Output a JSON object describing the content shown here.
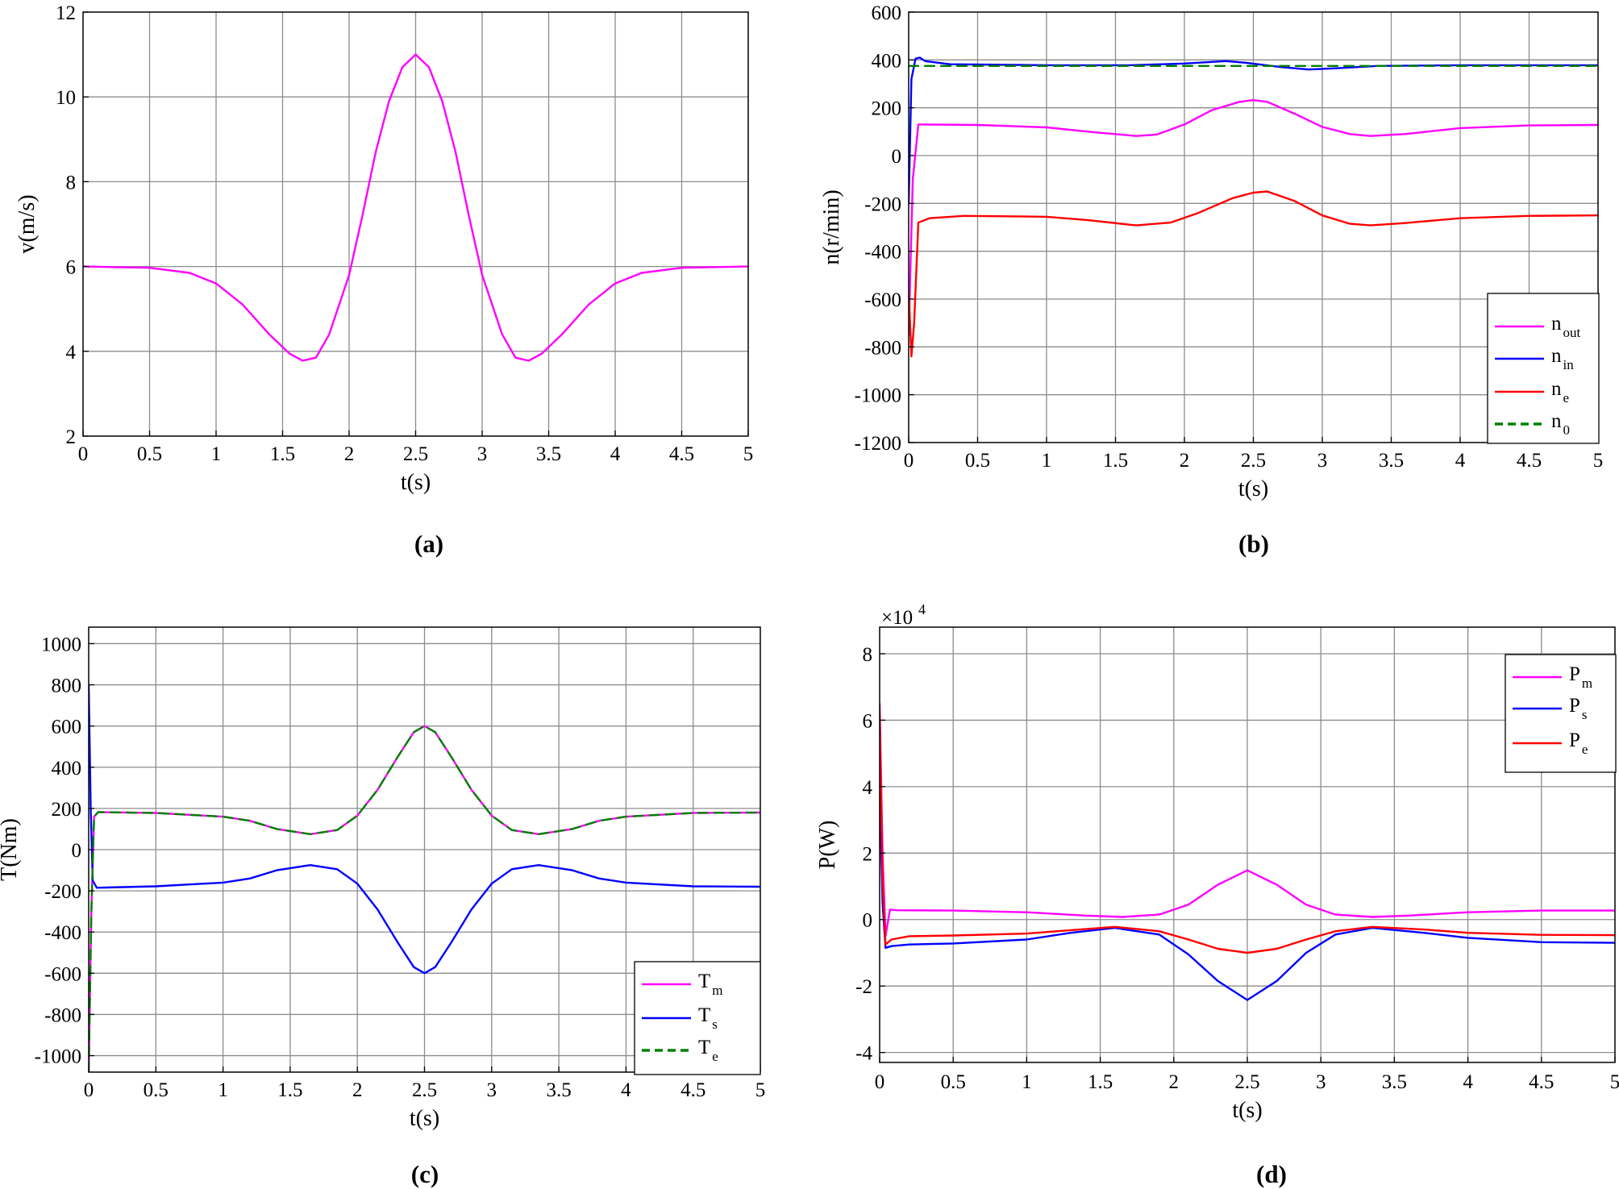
{
  "figure": {
    "caption_a": "(a)",
    "caption_b": "(b)",
    "caption_c": "(c)",
    "caption_d": "(d)"
  },
  "colors": {
    "magenta": "#ff00ff",
    "blue": "#0000ff",
    "red": "#ff0000",
    "green": "#008000",
    "grid": "#8c8c8c"
  },
  "chart_data": [
    {
      "id": "a",
      "type": "line",
      "caption": "(a)",
      "xlabel": "t(s)",
      "ylabel": "v(m/s)",
      "xlim": [
        0,
        5
      ],
      "ylim": [
        2,
        12
      ],
      "xticks": [
        0,
        0.5,
        1,
        1.5,
        2,
        2.5,
        3,
        3.5,
        4,
        4.5,
        5
      ],
      "yticks": [
        2,
        4,
        6,
        8,
        10,
        12
      ],
      "legend": null,
      "series": [
        {
          "name": "v",
          "color": "#ff00ff",
          "dashed": false,
          "points": [
            [
              0,
              6
            ],
            [
              0.5,
              5.97
            ],
            [
              0.8,
              5.85
            ],
            [
              1.0,
              5.6
            ],
            [
              1.2,
              5.1
            ],
            [
              1.4,
              4.4
            ],
            [
              1.55,
              3.95
            ],
            [
              1.65,
              3.78
            ],
            [
              1.75,
              3.85
            ],
            [
              1.85,
              4.4
            ],
            [
              2.0,
              5.8
            ],
            [
              2.1,
              7.2
            ],
            [
              2.2,
              8.7
            ],
            [
              2.3,
              9.9
            ],
            [
              2.4,
              10.7
            ],
            [
              2.5,
              11.0
            ],
            [
              2.6,
              10.7
            ],
            [
              2.7,
              9.9
            ],
            [
              2.8,
              8.7
            ],
            [
              2.9,
              7.2
            ],
            [
              3.0,
              5.8
            ],
            [
              3.15,
              4.4
            ],
            [
              3.25,
              3.85
            ],
            [
              3.35,
              3.78
            ],
            [
              3.45,
              3.95
            ],
            [
              3.6,
              4.4
            ],
            [
              3.8,
              5.1
            ],
            [
              4.0,
              5.6
            ],
            [
              4.2,
              5.85
            ],
            [
              4.5,
              5.97
            ],
            [
              5,
              6
            ]
          ]
        }
      ]
    },
    {
      "id": "b",
      "type": "line",
      "caption": "(b)",
      "xlabel": "t(s)",
      "ylabel": "n(r/min)",
      "xlim": [
        0,
        5
      ],
      "ylim": [
        -1200,
        600
      ],
      "xticks": [
        0,
        0.5,
        1,
        1.5,
        2,
        2.5,
        3,
        3.5,
        4,
        4.5,
        5
      ],
      "yticks": [
        -1200,
        -1000,
        -800,
        -600,
        -400,
        -200,
        0,
        200,
        400,
        600
      ],
      "legend": {
        "position": "bottom-right"
      },
      "series": [
        {
          "name": "n",
          "sub": "out",
          "color": "#ff00ff",
          "dashed": false,
          "points": [
            [
              0,
              -750
            ],
            [
              0.03,
              -100
            ],
            [
              0.07,
              130
            ],
            [
              0.5,
              128
            ],
            [
              1.0,
              118
            ],
            [
              1.3,
              100
            ],
            [
              1.65,
              82
            ],
            [
              1.8,
              88
            ],
            [
              2.0,
              130
            ],
            [
              2.2,
              190
            ],
            [
              2.4,
              225
            ],
            [
              2.5,
              232
            ],
            [
              2.6,
              225
            ],
            [
              2.8,
              175
            ],
            [
              3.0,
              120
            ],
            [
              3.2,
              90
            ],
            [
              3.35,
              82
            ],
            [
              3.6,
              90
            ],
            [
              4.0,
              115
            ],
            [
              4.5,
              126
            ],
            [
              5,
              128
            ]
          ]
        },
        {
          "name": "n",
          "sub": "in",
          "color": "#0000ff",
          "dashed": false,
          "points": [
            [
              0,
              -200
            ],
            [
              0.02,
              320
            ],
            [
              0.05,
              405
            ],
            [
              0.08,
              410
            ],
            [
              0.12,
              395
            ],
            [
              0.3,
              382
            ],
            [
              1.0,
              378
            ],
            [
              1.6,
              378
            ],
            [
              2.0,
              385
            ],
            [
              2.3,
              395
            ],
            [
              2.45,
              388
            ],
            [
              2.7,
              370
            ],
            [
              2.9,
              360
            ],
            [
              3.1,
              365
            ],
            [
              3.4,
              375
            ],
            [
              4.0,
              378
            ],
            [
              5,
              378
            ]
          ]
        },
        {
          "name": "n",
          "sub": "e",
          "color": "#ff0000",
          "dashed": false,
          "points": [
            [
              0,
              -560
            ],
            [
              0.02,
              -840
            ],
            [
              0.04,
              -700
            ],
            [
              0.07,
              -280
            ],
            [
              0.15,
              -262
            ],
            [
              0.4,
              -252
            ],
            [
              1.0,
              -256
            ],
            [
              1.3,
              -270
            ],
            [
              1.65,
              -292
            ],
            [
              1.9,
              -280
            ],
            [
              2.1,
              -240
            ],
            [
              2.35,
              -178
            ],
            [
              2.5,
              -155
            ],
            [
              2.6,
              -150
            ],
            [
              2.8,
              -190
            ],
            [
              3.0,
              -250
            ],
            [
              3.2,
              -285
            ],
            [
              3.35,
              -292
            ],
            [
              3.6,
              -282
            ],
            [
              4.0,
              -262
            ],
            [
              4.5,
              -252
            ],
            [
              5,
              -250
            ]
          ]
        },
        {
          "name": "n",
          "sub": "0",
          "color": "#008000",
          "dashed": true,
          "points": [
            [
              0,
              375
            ],
            [
              5,
              375
            ]
          ]
        }
      ]
    },
    {
      "id": "c",
      "type": "line",
      "caption": "(c)",
      "xlabel": "t(s)",
      "ylabel": "T(Nm)",
      "xlim": [
        0,
        5
      ],
      "ylim": [
        -1080,
        1080
      ],
      "xticks": [
        0,
        0.5,
        1,
        1.5,
        2,
        2.5,
        3,
        3.5,
        4,
        4.5,
        5
      ],
      "yticks": [
        -1000,
        -800,
        -600,
        -400,
        -200,
        0,
        200,
        400,
        600,
        800,
        1000
      ],
      "legend": {
        "position": "bottom-right"
      },
      "series": [
        {
          "name": "T",
          "sub": "m",
          "color": "#ff00ff",
          "dashed": false,
          "points": [
            [
              0,
              -1080
            ],
            [
              0.02,
              -300
            ],
            [
              0.04,
              160
            ],
            [
              0.07,
              182
            ],
            [
              0.5,
              178
            ],
            [
              1.0,
              160
            ],
            [
              1.2,
              140
            ],
            [
              1.4,
              100
            ],
            [
              1.65,
              75
            ],
            [
              1.85,
              95
            ],
            [
              2.0,
              165
            ],
            [
              2.15,
              290
            ],
            [
              2.3,
              450
            ],
            [
              2.42,
              570
            ],
            [
              2.5,
              600
            ],
            [
              2.58,
              570
            ],
            [
              2.7,
              450
            ],
            [
              2.85,
              290
            ],
            [
              3.0,
              165
            ],
            [
              3.15,
              95
            ],
            [
              3.35,
              75
            ],
            [
              3.6,
              100
            ],
            [
              3.8,
              140
            ],
            [
              4.0,
              160
            ],
            [
              4.5,
              178
            ],
            [
              5,
              180
            ]
          ]
        },
        {
          "name": "T",
          "sub": "s",
          "color": "#0000ff",
          "dashed": false,
          "points": [
            [
              0,
              800
            ],
            [
              0.015,
              200
            ],
            [
              0.03,
              -150
            ],
            [
              0.06,
              -185
            ],
            [
              0.5,
              -178
            ],
            [
              1.0,
              -160
            ],
            [
              1.2,
              -140
            ],
            [
              1.4,
              -100
            ],
            [
              1.65,
              -75
            ],
            [
              1.85,
              -95
            ],
            [
              2.0,
              -165
            ],
            [
              2.15,
              -290
            ],
            [
              2.3,
              -450
            ],
            [
              2.42,
              -570
            ],
            [
              2.5,
              -600
            ],
            [
              2.58,
              -570
            ],
            [
              2.7,
              -450
            ],
            [
              2.85,
              -290
            ],
            [
              3.0,
              -165
            ],
            [
              3.15,
              -95
            ],
            [
              3.35,
              -75
            ],
            [
              3.6,
              -100
            ],
            [
              3.8,
              -140
            ],
            [
              4.0,
              -160
            ],
            [
              4.5,
              -178
            ],
            [
              5,
              -180
            ]
          ]
        },
        {
          "name": "T",
          "sub": "e",
          "color": "#008000",
          "dashed": true,
          "points": [
            [
              0,
              -1080
            ],
            [
              0.02,
              -300
            ],
            [
              0.04,
              160
            ],
            [
              0.07,
              182
            ],
            [
              0.5,
              178
            ],
            [
              1.0,
              160
            ],
            [
              1.2,
              140
            ],
            [
              1.4,
              100
            ],
            [
              1.65,
              75
            ],
            [
              1.85,
              95
            ],
            [
              2.0,
              165
            ],
            [
              2.15,
              290
            ],
            [
              2.3,
              450
            ],
            [
              2.42,
              570
            ],
            [
              2.5,
              600
            ],
            [
              2.58,
              570
            ],
            [
              2.7,
              450
            ],
            [
              2.85,
              290
            ],
            [
              3.0,
              165
            ],
            [
              3.15,
              95
            ],
            [
              3.35,
              75
            ],
            [
              3.6,
              100
            ],
            [
              3.8,
              140
            ],
            [
              4.0,
              160
            ],
            [
              4.5,
              178
            ],
            [
              5,
              180
            ]
          ]
        }
      ]
    },
    {
      "id": "d",
      "type": "line",
      "caption": "(d)",
      "xlabel": "t(s)",
      "ylabel": "P(W)",
      "y_multiplier": "×10",
      "y_multiplier_exp": "4",
      "xlim": [
        0,
        5
      ],
      "ylim": [
        -4.3,
        8.8
      ],
      "xticks": [
        0,
        0.5,
        1,
        1.5,
        2,
        2.5,
        3,
        3.5,
        4,
        4.5,
        5
      ],
      "yticks": [
        -4,
        -2,
        0,
        2,
        4,
        6,
        8
      ],
      "legend": {
        "position": "top-right"
      },
      "series": [
        {
          "name": "P",
          "sub": "m",
          "color": "#ff00ff",
          "dashed": false,
          "points": [
            [
              0,
              6.5
            ],
            [
              0.02,
              2.0
            ],
            [
              0.04,
              -0.5
            ],
            [
              0.07,
              0.3
            ],
            [
              0.12,
              0.28
            ],
            [
              0.5,
              0.27
            ],
            [
              1.0,
              0.22
            ],
            [
              1.4,
              0.12
            ],
            [
              1.65,
              0.08
            ],
            [
              1.9,
              0.15
            ],
            [
              2.1,
              0.45
            ],
            [
              2.3,
              1.05
            ],
            [
              2.5,
              1.48
            ],
            [
              2.7,
              1.05
            ],
            [
              2.9,
              0.45
            ],
            [
              3.1,
              0.15
            ],
            [
              3.35,
              0.08
            ],
            [
              3.6,
              0.12
            ],
            [
              4.0,
              0.22
            ],
            [
              4.5,
              0.27
            ],
            [
              5,
              0.27
            ]
          ]
        },
        {
          "name": "P",
          "sub": "s",
          "color": "#0000ff",
          "dashed": false,
          "points": [
            [
              0,
              4.0
            ],
            [
              0.02,
              0.5
            ],
            [
              0.04,
              -0.85
            ],
            [
              0.08,
              -0.8
            ],
            [
              0.2,
              -0.75
            ],
            [
              0.5,
              -0.72
            ],
            [
              1.0,
              -0.6
            ],
            [
              1.3,
              -0.4
            ],
            [
              1.6,
              -0.25
            ],
            [
              1.9,
              -0.45
            ],
            [
              2.1,
              -1.05
            ],
            [
              2.3,
              -1.85
            ],
            [
              2.5,
              -2.42
            ],
            [
              2.7,
              -1.85
            ],
            [
              2.9,
              -1.0
            ],
            [
              3.1,
              -0.45
            ],
            [
              3.35,
              -0.25
            ],
            [
              3.7,
              -0.4
            ],
            [
              4.0,
              -0.55
            ],
            [
              4.5,
              -0.68
            ],
            [
              5,
              -0.7
            ]
          ]
        },
        {
          "name": "P",
          "sub": "e",
          "color": "#ff0000",
          "dashed": false,
          "points": [
            [
              0,
              6.2
            ],
            [
              0.02,
              1.2
            ],
            [
              0.04,
              -0.75
            ],
            [
              0.08,
              -0.6
            ],
            [
              0.2,
              -0.5
            ],
            [
              0.5,
              -0.48
            ],
            [
              1.0,
              -0.42
            ],
            [
              1.3,
              -0.32
            ],
            [
              1.6,
              -0.22
            ],
            [
              1.9,
              -0.35
            ],
            [
              2.1,
              -0.6
            ],
            [
              2.3,
              -0.88
            ],
            [
              2.5,
              -1.0
            ],
            [
              2.7,
              -0.88
            ],
            [
              2.9,
              -0.6
            ],
            [
              3.1,
              -0.35
            ],
            [
              3.35,
              -0.22
            ],
            [
              3.7,
              -0.3
            ],
            [
              4.0,
              -0.4
            ],
            [
              4.5,
              -0.46
            ],
            [
              5,
              -0.47
            ]
          ]
        }
      ]
    }
  ]
}
